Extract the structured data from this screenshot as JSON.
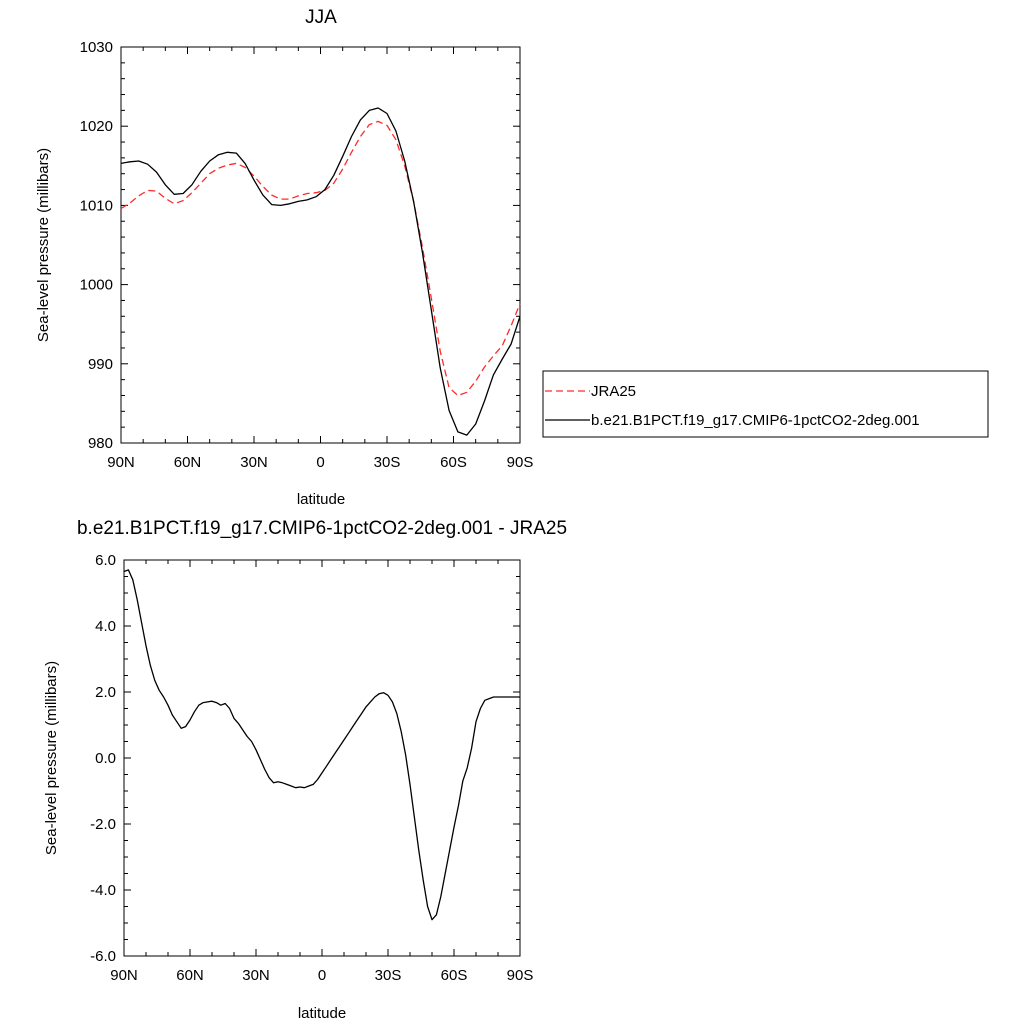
{
  "colors": {
    "model": "#000000",
    "obs": "#ff2a2a",
    "frame": "#000000"
  },
  "chart_data": [
    {
      "type": "line",
      "title": "JJA",
      "xlabel": "latitude",
      "ylabel": "Sea-level pressure (millibars)",
      "xlim": [
        90,
        -90
      ],
      "ylim": [
        980,
        1030
      ],
      "xticks": [
        90,
        60,
        30,
        0,
        -30,
        -60,
        -90
      ],
      "xtick_labels": [
        "90N",
        "60N",
        "30N",
        "0",
        "30S",
        "60S",
        "90S"
      ],
      "yticks": [
        980,
        990,
        1000,
        1010,
        1020,
        1030
      ],
      "ytick_labels": [
        "980",
        "990",
        "1000",
        "1010",
        "1020",
        "1030"
      ],
      "legend_position": "right",
      "series": [
        {
          "name": "JRA25",
          "style": "dashed",
          "color": "#ff2a2a",
          "x": [
            90,
            86,
            82,
            78,
            74,
            70,
            66,
            62,
            58,
            54,
            50,
            46,
            42,
            38,
            34,
            30,
            26,
            22,
            18,
            14,
            10,
            6,
            2,
            -2,
            -6,
            -10,
            -14,
            -18,
            -22,
            -26,
            -30,
            -34,
            -38,
            -42,
            -46,
            -50,
            -54,
            -58,
            -62,
            -66,
            -70,
            -74,
            -78,
            -82,
            -86,
            -90
          ],
          "y": [
            1009.6,
            1010.3,
            1011.2,
            1011.9,
            1011.8,
            1010.9,
            1010.2,
            1010.6,
            1011.6,
            1012.8,
            1014.0,
            1014.7,
            1015.1,
            1015.3,
            1014.8,
            1013.7,
            1012.4,
            1011.3,
            1010.8,
            1010.8,
            1011.2,
            1011.5,
            1011.6,
            1011.9,
            1012.8,
            1014.6,
            1016.7,
            1018.7,
            1020.2,
            1020.6,
            1020.1,
            1018.3,
            1015.0,
            1010.5,
            1004.7,
            998.3,
            991.6,
            987.0,
            986.0,
            986.4,
            987.8,
            989.6,
            991.0,
            992.3,
            994.8,
            997.6
          ]
        },
        {
          "name": "b.e21.B1PCT.f19_g17.CMIP6-1pctCO2-2deg.001",
          "style": "solid",
          "color": "#000000",
          "x": [
            90,
            86,
            82,
            78,
            74,
            70,
            66,
            62,
            58,
            54,
            50,
            46,
            42,
            38,
            34,
            30,
            26,
            22,
            18,
            14,
            10,
            6,
            2,
            -2,
            -6,
            -10,
            -14,
            -18,
            -22,
            -26,
            -30,
            -34,
            -38,
            -42,
            -46,
            -50,
            -54,
            -58,
            -62,
            -66,
            -70,
            -74,
            -78,
            -82,
            -86,
            -90
          ],
          "y": [
            1015.3,
            1015.5,
            1015.6,
            1015.2,
            1014.2,
            1012.6,
            1011.4,
            1011.5,
            1012.6,
            1014.3,
            1015.6,
            1016.4,
            1016.7,
            1016.6,
            1015.3,
            1013.2,
            1011.3,
            1010.1,
            1010.0,
            1010.2,
            1010.5,
            1010.7,
            1011.1,
            1012.0,
            1013.8,
            1016.2,
            1018.7,
            1020.8,
            1022.0,
            1022.3,
            1021.6,
            1019.4,
            1015.6,
            1010.5,
            1004.0,
            996.8,
            989.5,
            984.1,
            981.4,
            981.0,
            982.4,
            985.3,
            988.6,
            990.6,
            992.5,
            996.0
          ]
        }
      ]
    },
    {
      "type": "line",
      "title": "b.e21.B1PCT.f19_g17.CMIP6-1pctCO2-2deg.001 - JRA25",
      "xlabel": "latitude",
      "ylabel": "Sea-level pressure (millibars)",
      "xlim": [
        90,
        -90
      ],
      "ylim": [
        -6.0,
        6.0
      ],
      "xticks": [
        90,
        60,
        30,
        0,
        -30,
        -60,
        -90
      ],
      "xtick_labels": [
        "90N",
        "60N",
        "30N",
        "0",
        "30S",
        "60S",
        "90S"
      ],
      "yticks": [
        -6,
        -4,
        -2,
        0,
        2,
        4,
        6
      ],
      "ytick_labels": [
        "-6.0",
        "-4.0",
        "-2.0",
        "0.0",
        "2.0",
        "4.0",
        "6.0"
      ],
      "series": [
        {
          "style": "solid",
          "color": "#000000",
          "x": [
            90,
            88,
            86,
            84,
            82,
            80,
            78,
            76,
            74,
            72,
            70,
            68,
            66,
            64,
            62,
            60,
            58,
            56,
            54,
            52,
            50,
            48,
            46,
            44,
            42,
            40,
            38,
            36,
            34,
            32,
            30,
            28,
            26,
            24,
            22,
            20,
            18,
            16,
            14,
            12,
            10,
            8,
            6,
            4,
            2,
            0,
            -2,
            -4,
            -6,
            -8,
            -10,
            -12,
            -14,
            -16,
            -18,
            -20,
            -22,
            -24,
            -26,
            -28,
            -30,
            -32,
            -34,
            -36,
            -38,
            -40,
            -42,
            -44,
            -46,
            -48,
            -50,
            -52,
            -54,
            -56,
            -58,
            -60,
            -62,
            -64,
            -66,
            -68,
            -70,
            -72,
            -74,
            -76,
            -78,
            -80,
            -82,
            -84,
            -86,
            -88,
            -90
          ],
          "y": [
            5.65,
            5.7,
            5.4,
            4.8,
            4.1,
            3.4,
            2.8,
            2.35,
            2.05,
            1.85,
            1.6,
            1.3,
            1.1,
            0.9,
            0.95,
            1.15,
            1.4,
            1.6,
            1.68,
            1.7,
            1.72,
            1.68,
            1.6,
            1.65,
            1.5,
            1.2,
            1.05,
            0.85,
            0.65,
            0.5,
            0.25,
            -0.05,
            -0.35,
            -0.6,
            -0.75,
            -0.72,
            -0.75,
            -0.8,
            -0.85,
            -0.9,
            -0.88,
            -0.9,
            -0.85,
            -0.8,
            -0.65,
            -0.45,
            -0.25,
            -0.05,
            0.15,
            0.35,
            0.55,
            0.75,
            0.95,
            1.15,
            1.35,
            1.55,
            1.7,
            1.85,
            1.95,
            1.98,
            1.9,
            1.7,
            1.35,
            0.8,
            0.1,
            -0.8,
            -1.8,
            -2.8,
            -3.7,
            -4.5,
            -4.9,
            -4.75,
            -4.2,
            -3.5,
            -2.8,
            -2.1,
            -1.45,
            -0.7,
            -0.3,
            0.3,
            1.1,
            1.5,
            1.75,
            1.8,
            1.85,
            1.85,
            1.85,
            1.85,
            1.85,
            1.85,
            1.85
          ]
        }
      ]
    }
  ]
}
